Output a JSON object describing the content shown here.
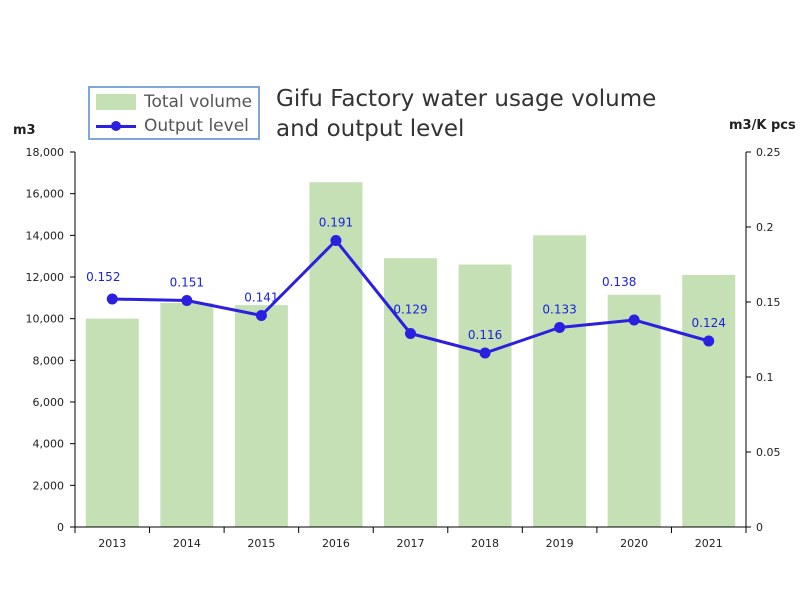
{
  "chart_data": {
    "type": "bar+line",
    "title_lines": [
      "Gifu Factory water usage volume",
      "and output level"
    ],
    "categories": [
      "2013",
      "2014",
      "2015",
      "2016",
      "2017",
      "2018",
      "2019",
      "2020",
      "2021"
    ],
    "series": [
      {
        "name": "Total volume",
        "type": "bar",
        "axis": "left",
        "values": [
          10000,
          10750,
          10650,
          16550,
          12900,
          12600,
          14000,
          11150,
          12100
        ]
      },
      {
        "name": "Output level",
        "type": "line",
        "axis": "right",
        "values": [
          0.152,
          0.151,
          0.141,
          0.191,
          0.129,
          0.116,
          0.133,
          0.138,
          0.124
        ]
      }
    ],
    "y_left": {
      "label": "m3",
      "ylim": [
        0,
        18000
      ],
      "ticks": [
        "0",
        "2,000",
        "4,000",
        "6,000",
        "8,000",
        "10,000",
        "12,000",
        "14,000",
        "16,000",
        "18,000"
      ]
    },
    "y_right": {
      "label": "m3/K pcs",
      "ylim": [
        0,
        0.25
      ],
      "ticks": [
        "0",
        "0.05",
        "0.1",
        "0.15",
        "0.2",
        "0.25"
      ]
    },
    "legend_position": "top-left",
    "grid": false,
    "colors": {
      "bar": "#c5e0b4",
      "line": "#2b1fe0",
      "data_label": "#1a22e0"
    }
  }
}
